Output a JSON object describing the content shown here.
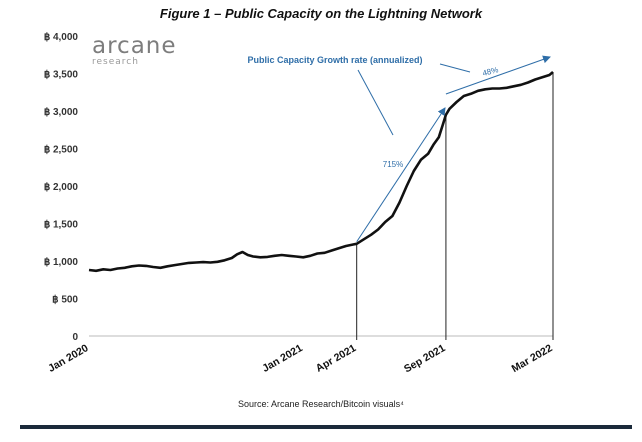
{
  "chart_data": {
    "type": "line",
    "title": "Figure 1 – Public Capacity on the Lightning Network",
    "source": "Source: Arcane Research/Bitcoin visuals⁴",
    "logo": {
      "name": "arcane",
      "subtitle": "research"
    },
    "y_ticks": [
      "0",
      "฿ 500",
      "฿ 1,000",
      "฿ 1,500",
      "฿ 2,000",
      "฿ 2,500",
      "฿ 3,000",
      "฿ 3,500",
      "฿ 4,000"
    ],
    "ylim": [
      0,
      4000
    ],
    "x_ticks": [
      {
        "label": "Jan 2020",
        "month": 0
      },
      {
        "label": "Jan 2021",
        "month": 12
      },
      {
        "label": "Apr 2021",
        "month": 15
      },
      {
        "label": "Sep 2021",
        "month": 20
      },
      {
        "label": "Mar 2022",
        "month": 26
      }
    ],
    "xlim": [
      "2020-01",
      "2022-03"
    ],
    "series": [
      {
        "values": [
          [
            0,
            880
          ],
          [
            0.4,
            870
          ],
          [
            0.8,
            890
          ],
          [
            1.2,
            880
          ],
          [
            1.6,
            900
          ],
          [
            2.0,
            910
          ],
          [
            2.4,
            930
          ],
          [
            2.8,
            940
          ],
          [
            3.2,
            935
          ],
          [
            3.6,
            920
          ],
          [
            4.0,
            910
          ],
          [
            4.4,
            930
          ],
          [
            4.8,
            945
          ],
          [
            5.2,
            960
          ],
          [
            5.6,
            975
          ],
          [
            6.0,
            980
          ],
          [
            6.4,
            985
          ],
          [
            6.8,
            980
          ],
          [
            7.2,
            990
          ],
          [
            7.6,
            1010
          ],
          [
            8.0,
            1040
          ],
          [
            8.3,
            1090
          ],
          [
            8.6,
            1120
          ],
          [
            8.9,
            1080
          ],
          [
            9.2,
            1060
          ],
          [
            9.6,
            1050
          ],
          [
            10.0,
            1055
          ],
          [
            10.4,
            1070
          ],
          [
            10.8,
            1080
          ],
          [
            11.2,
            1070
          ],
          [
            11.6,
            1060
          ],
          [
            12.0,
            1050
          ],
          [
            12.4,
            1070
          ],
          [
            12.8,
            1100
          ],
          [
            13.2,
            1110
          ],
          [
            13.6,
            1140
          ],
          [
            14.0,
            1170
          ],
          [
            14.4,
            1200
          ],
          [
            14.8,
            1220
          ],
          [
            15.0,
            1230
          ],
          [
            15.4,
            1290
          ],
          [
            15.8,
            1350
          ],
          [
            16.2,
            1420
          ],
          [
            16.6,
            1520
          ],
          [
            17.0,
            1600
          ],
          [
            17.4,
            1780
          ],
          [
            17.8,
            2000
          ],
          [
            18.2,
            2200
          ],
          [
            18.6,
            2350
          ],
          [
            19.0,
            2430
          ],
          [
            19.3,
            2550
          ],
          [
            19.6,
            2650
          ],
          [
            19.8,
            2800
          ],
          [
            20.0,
            2950
          ],
          [
            20.2,
            3030
          ],
          [
            20.6,
            3120
          ],
          [
            21.0,
            3200
          ],
          [
            21.4,
            3230
          ],
          [
            21.8,
            3270
          ],
          [
            22.2,
            3290
          ],
          [
            22.6,
            3300
          ],
          [
            23.0,
            3300
          ],
          [
            23.4,
            3310
          ],
          [
            23.8,
            3330
          ],
          [
            24.2,
            3350
          ],
          [
            24.6,
            3380
          ],
          [
            25.0,
            3420
          ],
          [
            25.4,
            3450
          ],
          [
            25.8,
            3480
          ],
          [
            26.0,
            3520
          ]
        ]
      }
    ],
    "annotations": {
      "label": "Public Capacity Growth rate (annualized)",
      "rates": [
        "715%",
        "48%"
      ]
    }
  }
}
